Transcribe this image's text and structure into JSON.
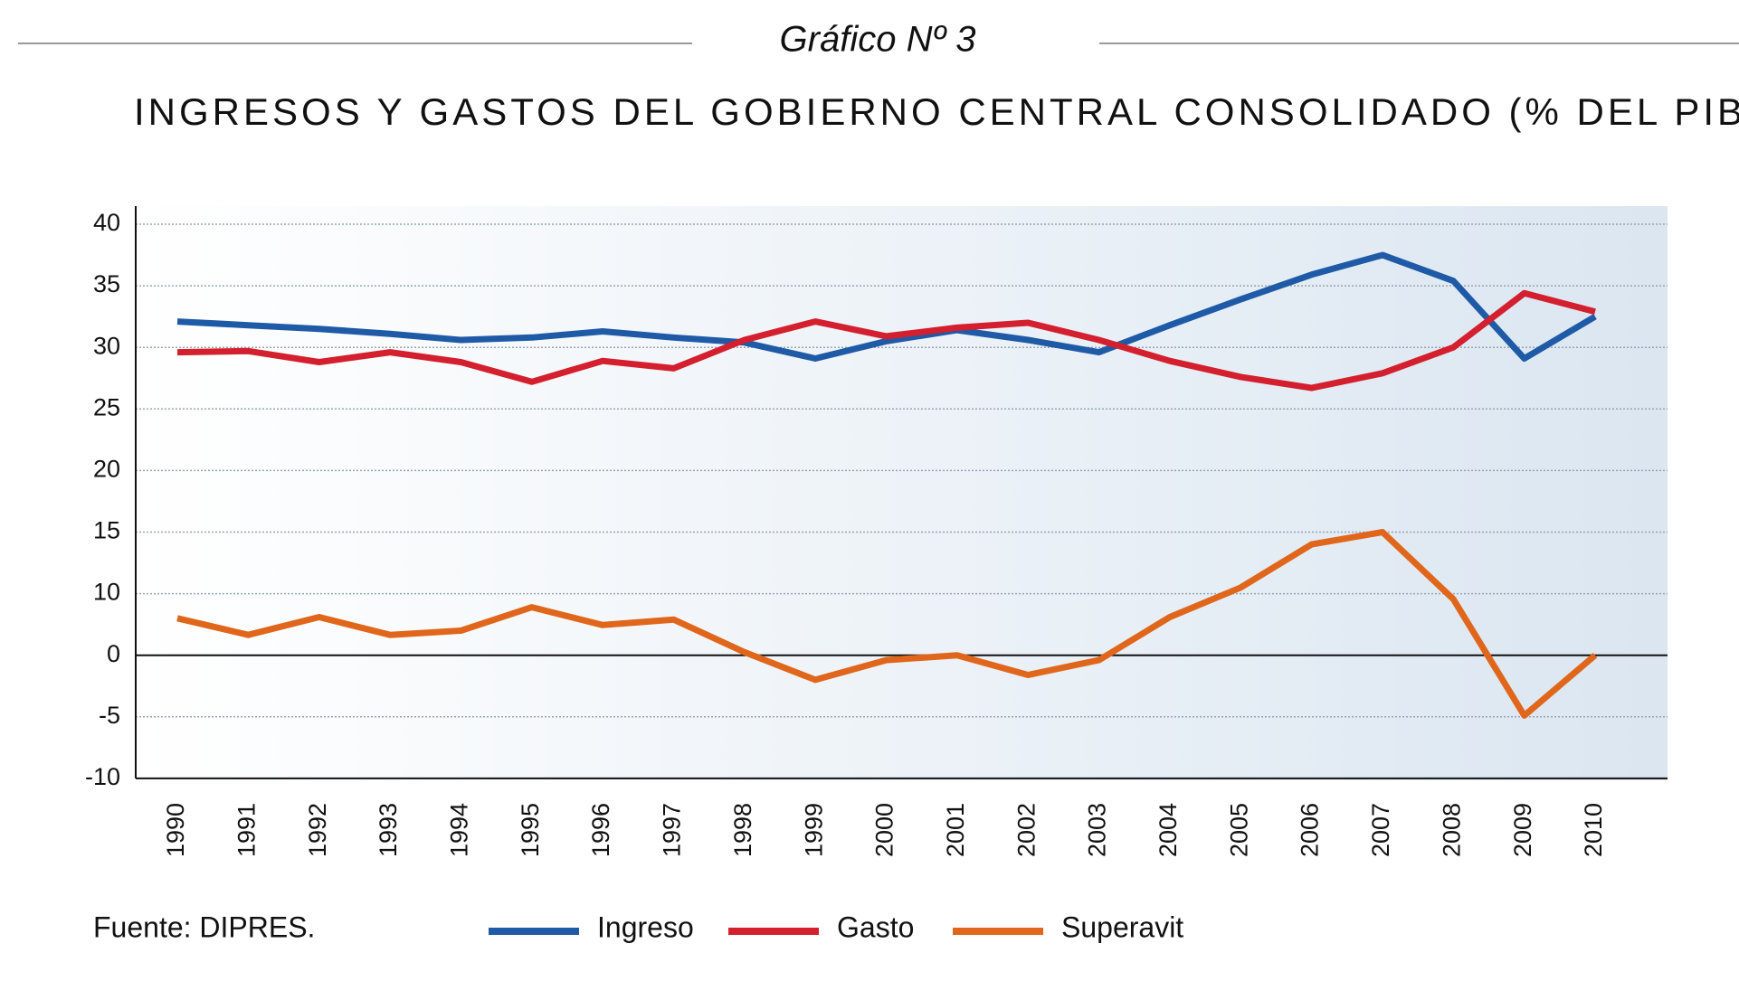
{
  "chart_data": {
    "type": "line",
    "header": "Gráfico Nº 3",
    "title": "INGRESOS Y GASTOS DEL GOBIERNO CENTRAL CONSOLIDADO (% DEL PIB)",
    "source": "Fuente: DIPRES.",
    "categories": [
      "1990",
      "1991",
      "1992",
      "1993",
      "1994",
      "1995",
      "1996",
      "1997",
      "1998",
      "1999",
      "2000",
      "2001",
      "2002",
      "2003",
      "2004",
      "2005",
      "2006",
      "2007",
      "2008",
      "2009",
      "2010"
    ],
    "series": [
      {
        "name": "Ingreso",
        "color": "#1f5aa6",
        "values": [
          32.1,
          31.8,
          31.5,
          31.1,
          30.6,
          30.8,
          31.3,
          30.8,
          30.4,
          29.1,
          30.5,
          31.4,
          30.6,
          29.6,
          31.8,
          33.9,
          35.9,
          37.5,
          35.4,
          29.1,
          32.5
        ]
      },
      {
        "name": "Gasto",
        "color": "#d41f2e",
        "values": [
          29.6,
          29.7,
          28.8,
          29.6,
          28.8,
          27.2,
          28.9,
          28.3,
          30.6,
          32.1,
          30.9,
          31.6,
          32.0,
          30.6,
          28.9,
          27.6,
          26.7,
          27.9,
          30.0,
          34.4,
          32.9
        ]
      },
      {
        "name": "Superavit",
        "color": "#e0661c",
        "values": [
          6.0,
          3.3,
          6.2,
          3.3,
          4.0,
          7.8,
          4.9,
          5.8,
          0.5,
          -2.0,
          -0.4,
          0,
          -1.6,
          -0.4,
          6.2,
          10.5,
          14.0,
          15.0,
          9.1,
          -4.9,
          0
        ]
      }
    ],
    "ylim": [
      -10,
      40
    ],
    "yticks": [
      40,
      35,
      30,
      25,
      20,
      15,
      10,
      0,
      -5,
      -10
    ],
    "grid": true,
    "legend": "bottom"
  }
}
